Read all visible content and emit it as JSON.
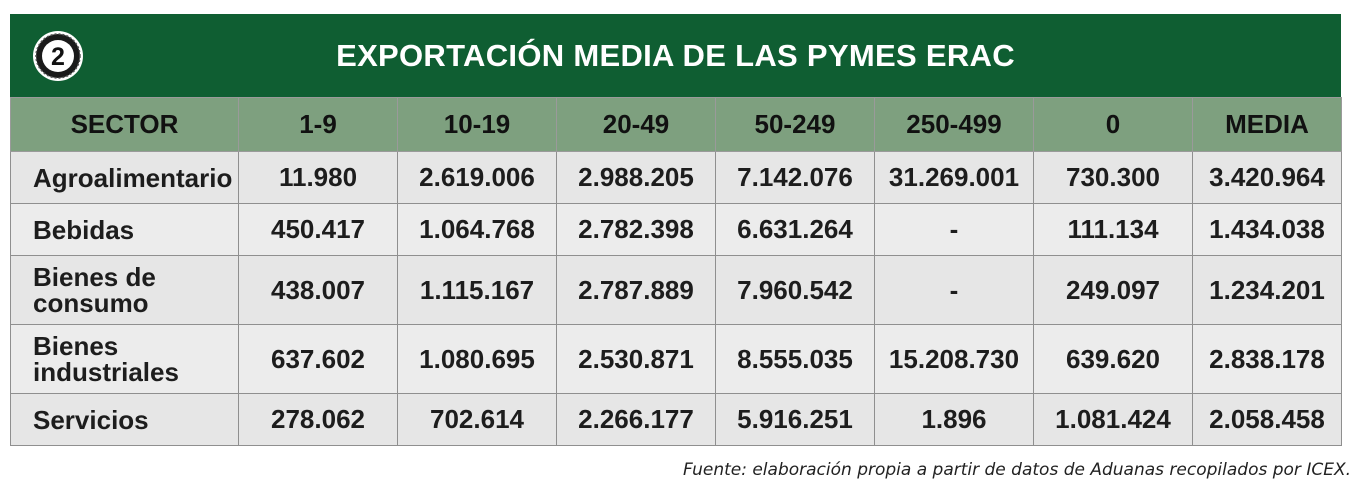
{
  "badge": "2",
  "title": "EXPORTACIÓN MEDIA DE LAS PYMES ERAC",
  "source": "Fuente: elaboración propia a partir de datos de Aduanas recopilados por ICEX.",
  "colors": {
    "header": "#0f5e32",
    "column_header": "#7ea07f",
    "cells": "#e8e8e8"
  },
  "chart_data": {
    "type": "table",
    "title": "EXPORTACIÓN MEDIA DE LAS PYMES ERAC",
    "columns": [
      "SECTOR",
      "1-9",
      "10-19",
      "20-49",
      "50-249",
      "250-499",
      "0",
      "MEDIA"
    ],
    "rows": [
      [
        "Agroalimentario",
        "11.980",
        "2.619.006",
        "2.988.205",
        "7.142.076",
        "31.269.001",
        "730.300",
        "3.420.964"
      ],
      [
        "Bebidas",
        "450.417",
        "1.064.768",
        "2.782.398",
        "6.631.264",
        "-",
        "111.134",
        "1.434.038"
      ],
      [
        "Bienes de consumo",
        "438.007",
        "1.115.167",
        "2.787.889",
        "7.960.542",
        "-",
        "249.097",
        "1.234.201"
      ],
      [
        "Bienes industriales",
        "637.602",
        "1.080.695",
        "2.530.871",
        "8.555.035",
        "15.208.730",
        "639.620",
        "2.838.178"
      ],
      [
        "Servicios",
        "278.062",
        "702.614",
        "2.266.177",
        "5.916.251",
        "1.896",
        "1.081.424",
        "2.058.458"
      ]
    ]
  }
}
